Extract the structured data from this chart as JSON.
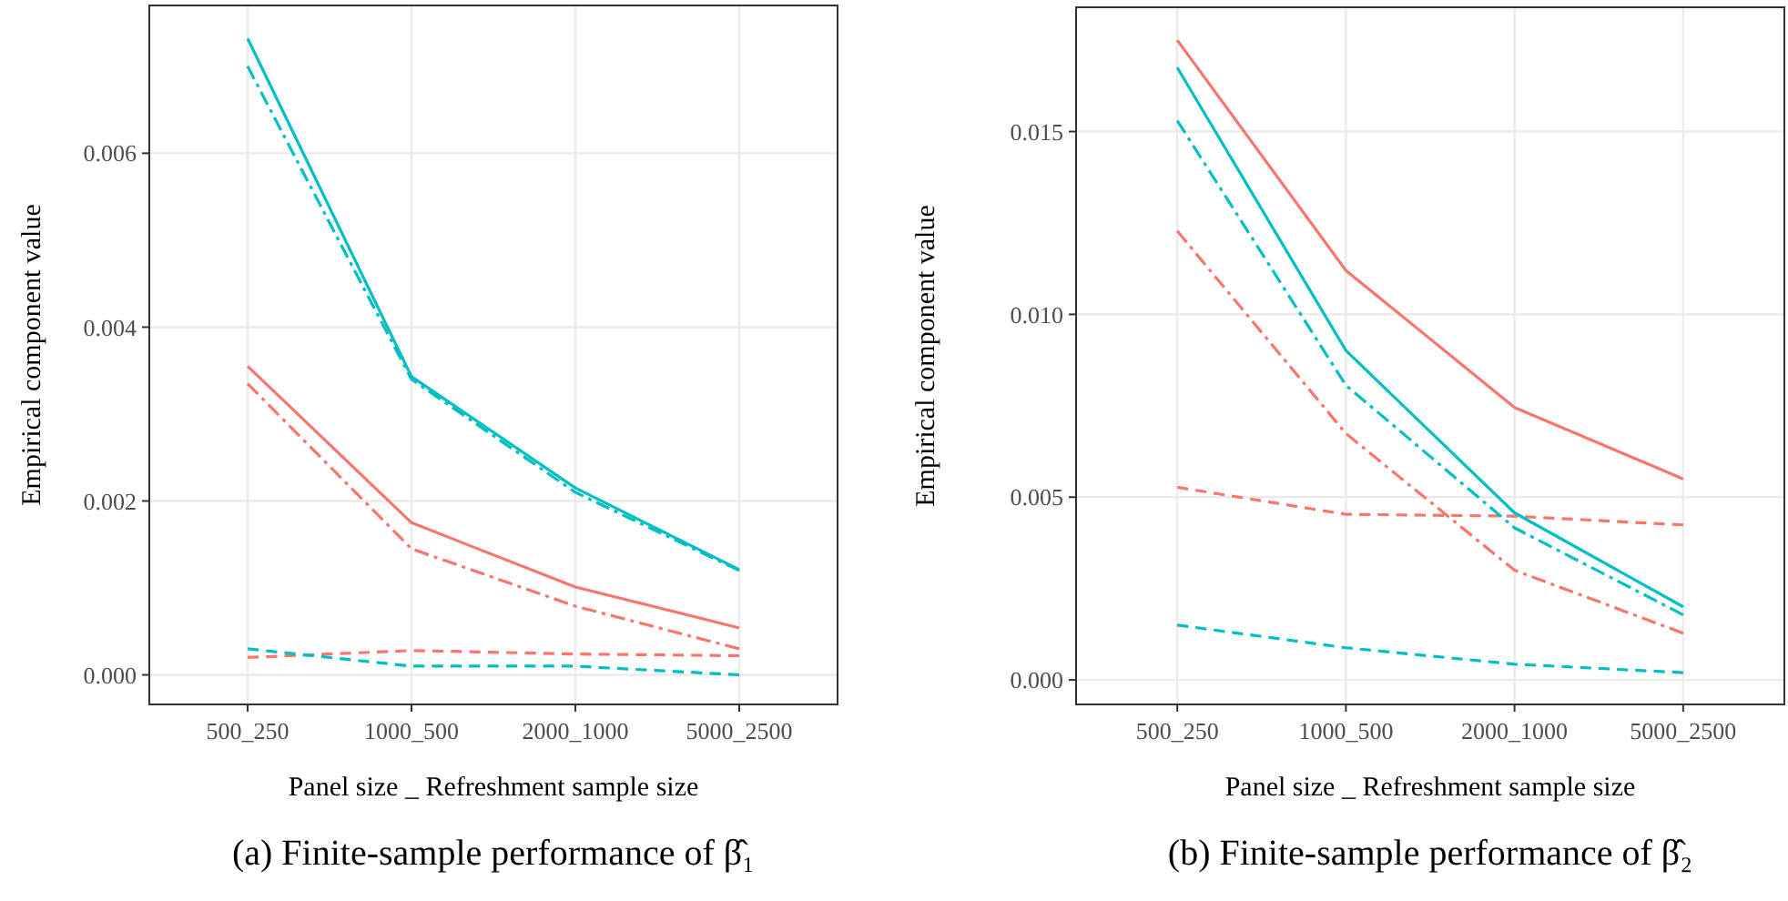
{
  "chart_data": [
    {
      "type": "line",
      "title": "(a) Finite-sample performance of β̂₁",
      "xlabel": "Panel size _ Refreshment sample size",
      "ylabel": "Empirical component value",
      "categories": [
        "500_250",
        "1000_500",
        "2000_1000",
        "5000_2500"
      ],
      "ylim": [
        -0.00034,
        0.0077
      ],
      "yticks": [
        {
          "value": 0,
          "label": "0.000"
        },
        {
          "value": 0.002,
          "label": "0.002"
        },
        {
          "value": 0.004,
          "label": "0.004"
        },
        {
          "value": 0.006,
          "label": "0.006"
        }
      ],
      "grid": true,
      "series": [
        {
          "color": "#f8766d",
          "line_style": "solid",
          "values": [
            0.00355,
            0.00175,
            0.00101,
            0.00054
          ]
        },
        {
          "color": "#f8766d",
          "line_style": "dashed",
          "values": [
            0.0002,
            0.00028,
            0.00024,
            0.00022
          ]
        },
        {
          "color": "#f8766d",
          "line_style": "dashdot",
          "values": [
            0.00335,
            0.00145,
            0.00079,
            0.0003
          ]
        },
        {
          "color": "#00bfc4",
          "line_style": "solid",
          "values": [
            0.00732,
            0.00343,
            0.00215,
            0.00121
          ]
        },
        {
          "color": "#00bfc4",
          "line_style": "dashed",
          "values": [
            0.0003,
            0.0001,
            0.0001,
            0.0
          ]
        },
        {
          "color": "#00bfc4",
          "line_style": "dashdot",
          "values": [
            0.007,
            0.0034,
            0.0021,
            0.0012
          ]
        }
      ]
    },
    {
      "type": "line",
      "title": "(b) Finite-sample performance of β̂₂",
      "xlabel": "Panel size _ Refreshment sample size",
      "ylabel": "Empirical component value",
      "categories": [
        "500_250",
        "1000_500",
        "2000_1000",
        "5000_2500"
      ],
      "ylim": [
        -0.00067,
        0.0184
      ],
      "yticks": [
        {
          "value": 0,
          "label": "0.000"
        },
        {
          "value": 0.005,
          "label": "0.005"
        },
        {
          "value": 0.01,
          "label": "0.010"
        },
        {
          "value": 0.015,
          "label": "0.015"
        }
      ],
      "grid": true,
      "series": [
        {
          "color": "#f8766d",
          "line_style": "solid",
          "values": [
            0.0175,
            0.0112,
            0.00745,
            0.0055
          ]
        },
        {
          "color": "#f8766d",
          "line_style": "dashed",
          "values": [
            0.00527,
            0.00453,
            0.00448,
            0.00424
          ]
        },
        {
          "color": "#f8766d",
          "line_style": "dashdot",
          "values": [
            0.01228,
            0.00674,
            0.003,
            0.00128
          ]
        },
        {
          "color": "#00bfc4",
          "line_style": "solid",
          "values": [
            0.01675,
            0.00901,
            0.00457,
            0.002
          ]
        },
        {
          "color": "#00bfc4",
          "line_style": "dashed",
          "values": [
            0.0015,
            0.00088,
            0.00043,
            0.0002
          ]
        },
        {
          "color": "#00bfc4",
          "line_style": "dashdot",
          "values": [
            0.0153,
            0.00806,
            0.00416,
            0.00178
          ]
        }
      ]
    }
  ]
}
